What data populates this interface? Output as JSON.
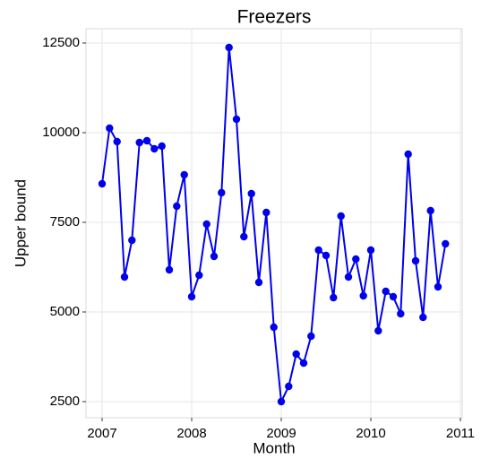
{
  "chart_data": {
    "type": "line",
    "title": "Freezers",
    "x_label": "Month",
    "y_label": "Upper bound",
    "x": [
      2007,
      2007.083,
      2007.167,
      2007.25,
      2007.333,
      2007.417,
      2007.5,
      2007.583,
      2007.667,
      2007.75,
      2007.833,
      2007.917,
      2008,
      2008.083,
      2008.167,
      2008.25,
      2008.333,
      2008.417,
      2008.5,
      2008.583,
      2008.667,
      2008.75,
      2008.833,
      2008.917,
      2009,
      2009.083,
      2009.167,
      2009.25,
      2009.333,
      2009.417,
      2009.5,
      2009.583,
      2009.667,
      2009.75,
      2009.833,
      2009.917,
      2010,
      2010.083,
      2010.167,
      2010.25,
      2010.333,
      2010.417,
      2010.5,
      2010.583,
      2010.667,
      2010.75,
      2010.833
    ],
    "series": [
      {
        "color": "#0000ee",
        "values": [
          8575,
          10125,
          9750,
          5975,
          7000,
          9725,
          9775,
          9550,
          9625,
          6175,
          7950,
          8825,
          5425,
          6025,
          7450,
          6550,
          8325,
          12375,
          10375,
          7100,
          8300,
          5825,
          7775,
          4575,
          2500,
          2925,
          3825,
          3575,
          4325,
          6725,
          6575,
          5400,
          7675,
          5975,
          6475,
          5450,
          6725,
          4475,
          5575,
          5425,
          4950,
          9400,
          6425,
          4850,
          7825,
          5700,
          6900
        ]
      }
    ],
    "xlim": [
      2006.82,
      2011.02
    ],
    "xticks": [
      2007,
      2008,
      2009,
      2010,
      2011
    ],
    "ylim": [
      2050,
      12900
    ],
    "yticks": [
      2500,
      5000,
      7500,
      10000,
      12500
    ],
    "grid": true
  }
}
